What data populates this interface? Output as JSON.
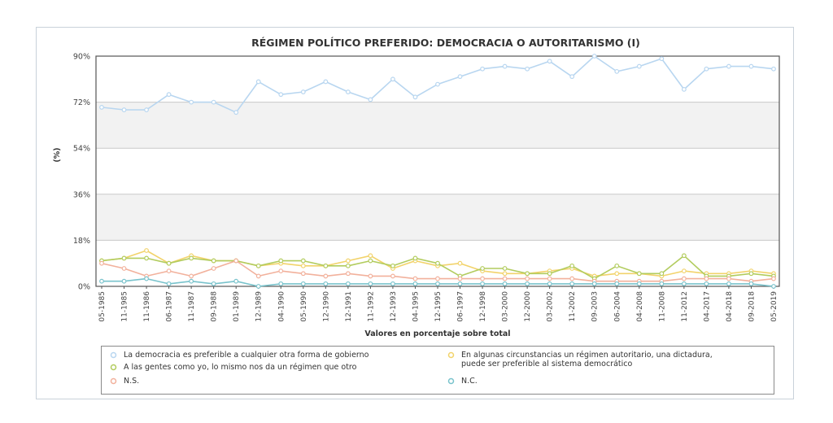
{
  "chart_data": {
    "type": "line",
    "title": "RÉGIMEN POLÍTICO PREFERIDO: DEMOCRACIA O AUTORITARISMO (I)",
    "xlabel": "Valores en porcentaje sobre total",
    "ylabel": "(%)",
    "ylim": [
      0,
      90
    ],
    "yticks": [
      "0%",
      "18%",
      "36%",
      "54%",
      "72%",
      "90%"
    ],
    "ytick_values": [
      0,
      18,
      36,
      54,
      72,
      90
    ],
    "grid": true,
    "legend_position": "bottom",
    "categories": [
      "05-1985",
      "11-1985",
      "11-1986",
      "06-1987",
      "11-1987",
      "09-1988",
      "01-1989",
      "12-1989",
      "04-1990",
      "05-1990",
      "12-1990",
      "12-1991",
      "11-1992",
      "12-1993",
      "04-1995",
      "12-1995",
      "06-1997",
      "12-1998",
      "03-2000",
      "12-2000",
      "03-2002",
      "11-2002",
      "09-2003",
      "06-2004",
      "04-2008",
      "11-2008",
      "11-2012",
      "04-2017",
      "04-2018",
      "09-2018",
      "05-2019"
    ],
    "series": [
      {
        "name": "La democracia es preferible a cualquier otra forma de gobierno",
        "color": "#b8d6f0",
        "values": [
          70,
          69,
          69,
          75,
          72,
          72,
          68,
          80,
          75,
          76,
          80,
          76,
          73,
          81,
          74,
          79,
          82,
          85,
          86,
          85,
          88,
          82,
          90,
          84,
          86,
          89,
          77,
          85,
          86,
          86,
          85
        ]
      },
      {
        "name": "En algunas circunstancias un régimen autoritario, una dictadura,\npuede ser preferible al sistema democrático",
        "color": "#f2d36b",
        "values": [
          10,
          11,
          14,
          9,
          12,
          10,
          10,
          8,
          9,
          8,
          8,
          10,
          12,
          7,
          10,
          8,
          9,
          6,
          5,
          5,
          6,
          7,
          4,
          5,
          5,
          4,
          6,
          5,
          5,
          6,
          5
        ]
      },
      {
        "name": "A las gentes como yo, lo mismo nos da un régimen que otro",
        "color": "#b2cc5e",
        "values": [
          10,
          11,
          11,
          9,
          11,
          10,
          10,
          8,
          10,
          10,
          8,
          8,
          10,
          8,
          11,
          9,
          4,
          7,
          7,
          5,
          5,
          8,
          3,
          8,
          5,
          5,
          12,
          4,
          4,
          5,
          4
        ]
      },
      {
        "name": "N.S.",
        "color": "#f2b19c",
        "values": [
          9,
          7,
          4,
          6,
          4,
          7,
          10,
          4,
          6,
          5,
          4,
          5,
          4,
          4,
          3,
          3,
          3,
          3,
          3,
          3,
          3,
          3,
          2,
          2,
          2,
          2,
          3,
          3,
          3,
          2,
          3
        ]
      },
      {
        "name": "N.C.",
        "color": "#79c3cc",
        "values": [
          2,
          2,
          3,
          1,
          2,
          1,
          2,
          0,
          1,
          1,
          1,
          1,
          1,
          1,
          1,
          1,
          1,
          1,
          1,
          1,
          1,
          1,
          1,
          1,
          1,
          1,
          1,
          1,
          1,
          1,
          0
        ]
      }
    ]
  }
}
